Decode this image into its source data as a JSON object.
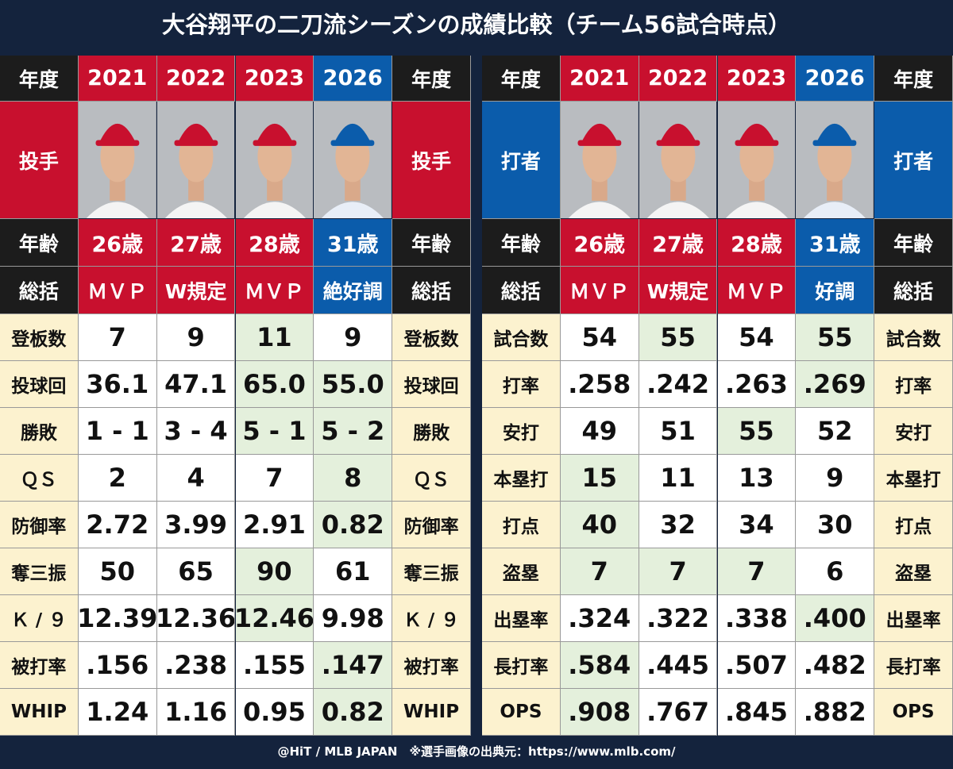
{
  "title": "大谷翔平の二刀流シーズンの成績比較（チーム56試合時点）",
  "footer": "@HiT / MLB JAPAN　※選手画像の出典元：https://www.mlb.com/",
  "tables": [
    {
      "header_label": "年度",
      "years": [
        "2021",
        "2022",
        "2023",
        "2026"
      ],
      "year_colors": [
        "#c8102e",
        "#c8102e",
        "#c8102e",
        "#0b5cab"
      ],
      "role": "投手",
      "role_color": "#c8102e",
      "age_label": "年齢",
      "ages": [
        "26歳",
        "27歳",
        "28歳",
        "31歳"
      ],
      "summary_label": "総括",
      "summaries": [
        "ＭＶＰ",
        "W規定",
        "ＭＶＰ",
        "絶好調"
      ],
      "rows": [
        {
          "label": "登板数",
          "values": [
            "7",
            "9",
            "11",
            "9"
          ],
          "highlight": [
            false,
            false,
            true,
            false
          ]
        },
        {
          "label": "投球回",
          "values": [
            "36.1",
            "47.1",
            "65.0",
            "55.0"
          ],
          "highlight": [
            false,
            false,
            true,
            true
          ]
        },
        {
          "label": "勝敗",
          "values": [
            "1 - 1",
            "3 - 4",
            "5 - 1",
            "5 - 2"
          ],
          "highlight": [
            false,
            false,
            true,
            true
          ]
        },
        {
          "label": "ＱＳ",
          "values": [
            "2",
            "4",
            "7",
            "8"
          ],
          "highlight": [
            false,
            false,
            false,
            true
          ]
        },
        {
          "label": "防御率",
          "values": [
            "2.72",
            "3.99",
            "2.91",
            "0.82"
          ],
          "highlight": [
            false,
            false,
            false,
            true
          ]
        },
        {
          "label": "奪三振",
          "values": [
            "50",
            "65",
            "90",
            "61"
          ],
          "highlight": [
            false,
            false,
            true,
            false
          ]
        },
        {
          "label": "Ｋ / ９",
          "values": [
            "12.39",
            "12.36",
            "12.46",
            "9.98"
          ],
          "highlight": [
            false,
            false,
            true,
            false
          ]
        },
        {
          "label": "被打率",
          "values": [
            ".156",
            ".238",
            ".155",
            ".147"
          ],
          "highlight": [
            false,
            false,
            false,
            true
          ]
        },
        {
          "label": "WHIP",
          "values": [
            "1.24",
            "1.16",
            "0.95",
            "0.82"
          ],
          "highlight": [
            false,
            false,
            false,
            true
          ]
        }
      ]
    },
    {
      "header_label": "年度",
      "years": [
        "2021",
        "2022",
        "2023",
        "2026"
      ],
      "year_colors": [
        "#c8102e",
        "#c8102e",
        "#c8102e",
        "#0b5cab"
      ],
      "role": "打者",
      "role_color": "#0b5cab",
      "age_label": "年齢",
      "ages": [
        "26歳",
        "27歳",
        "28歳",
        "31歳"
      ],
      "summary_label": "総括",
      "summaries": [
        "ＭＶＰ",
        "W規定",
        "ＭＶＰ",
        "好調"
      ],
      "rows": [
        {
          "label": "試合数",
          "values": [
            "54",
            "55",
            "54",
            "55"
          ],
          "highlight": [
            false,
            true,
            false,
            true
          ]
        },
        {
          "label": "打率",
          "values": [
            ".258",
            ".242",
            ".263",
            ".269"
          ],
          "highlight": [
            false,
            false,
            false,
            true
          ]
        },
        {
          "label": "安打",
          "values": [
            "49",
            "51",
            "55",
            "52"
          ],
          "highlight": [
            false,
            false,
            true,
            false
          ]
        },
        {
          "label": "本塁打",
          "values": [
            "15",
            "11",
            "13",
            "9"
          ],
          "highlight": [
            true,
            false,
            false,
            false
          ]
        },
        {
          "label": "打点",
          "values": [
            "40",
            "32",
            "34",
            "30"
          ],
          "highlight": [
            true,
            false,
            false,
            false
          ]
        },
        {
          "label": "盗塁",
          "values": [
            "7",
            "7",
            "7",
            "6"
          ],
          "highlight": [
            true,
            true,
            true,
            false
          ]
        },
        {
          "label": "出塁率",
          "values": [
            ".324",
            ".322",
            ".338",
            ".400"
          ],
          "highlight": [
            false,
            false,
            false,
            true
          ]
        },
        {
          "label": "長打率",
          "values": [
            ".584",
            ".445",
            ".507",
            ".482"
          ],
          "highlight": [
            true,
            false,
            false,
            false
          ]
        },
        {
          "label": "OPS",
          "values": [
            ".908",
            ".767",
            ".845",
            ".882"
          ],
          "highlight": [
            true,
            false,
            false,
            false
          ]
        }
      ]
    }
  ]
}
